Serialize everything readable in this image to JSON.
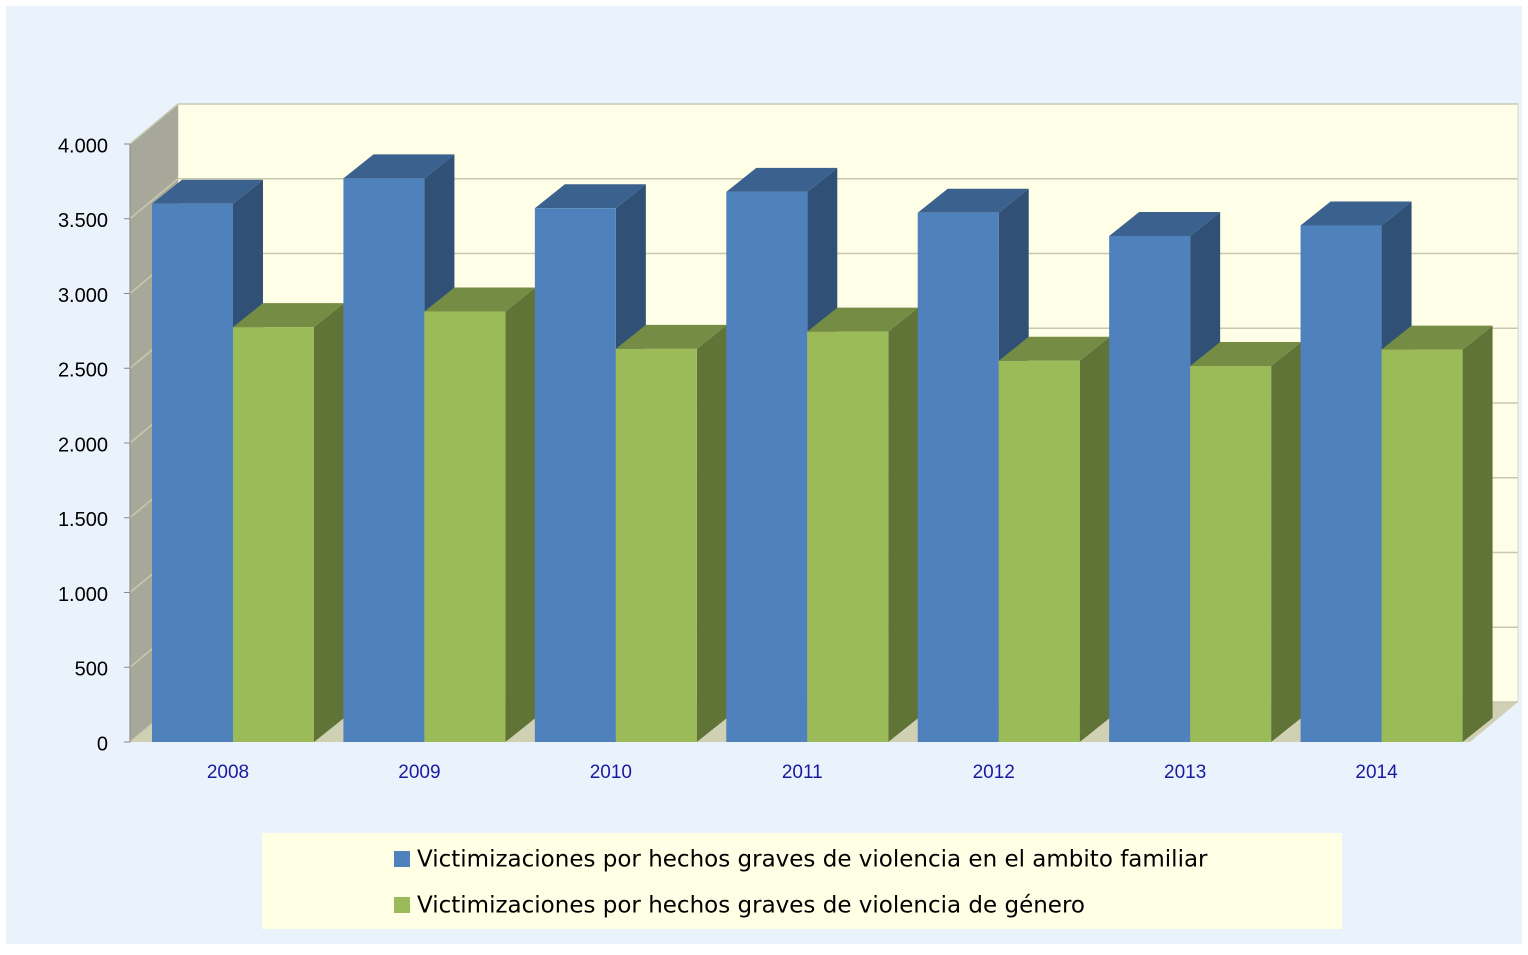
{
  "chart_data": {
    "type": "bar3d",
    "categories": [
      "2008",
      "2009",
      "2010",
      "2011",
      "2012",
      "2013",
      "2014"
    ],
    "series": [
      {
        "name": "Victimizaciones por hechos graves de violencia en el ambito familiar",
        "color": "#4f81bd",
        "values": [
          3600,
          3770,
          3570,
          3680,
          3540,
          3385,
          3455
        ]
      },
      {
        "name": "Victimizaciones por hechos graves de violencia de género",
        "color": "#9bbb59",
        "values": [
          2775,
          2880,
          2630,
          2745,
          2550,
          2515,
          2625
        ]
      }
    ],
    "ylim": [
      0,
      4000
    ],
    "yticks": [
      0,
      {
        "value": 500,
        "label": "500"
      },
      {
        "value": 1000,
        "label": "1.000"
      },
      {
        "value": 1500,
        "label": "1.500"
      },
      {
        "value": 2000,
        "label": "2.000"
      },
      {
        "value": 2500,
        "label": "2.500"
      },
      {
        "value": 3000,
        "label": "3.000"
      },
      {
        "value": 3500,
        "label": "3.500"
      },
      {
        "value": 4000,
        "label": "4.000"
      }
    ],
    "grid": true,
    "legend": "bottom"
  }
}
